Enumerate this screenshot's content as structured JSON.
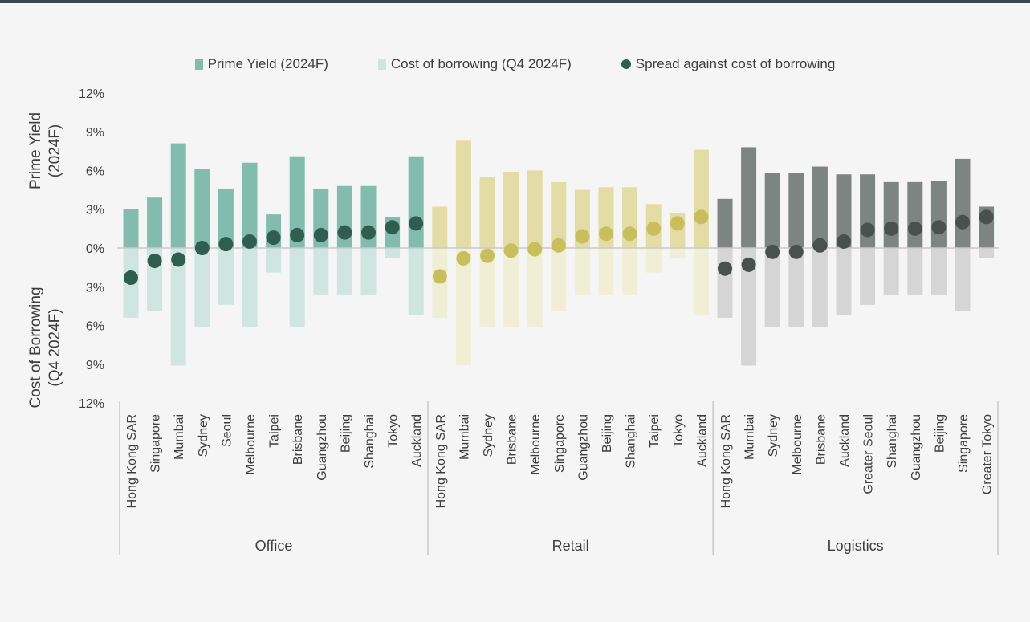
{
  "colors": {
    "office_yield": "#82bcad",
    "office_borrow": "#cfe5df",
    "office_dot": "#2f5e4f",
    "retail_yield": "#e3dca4",
    "retail_borrow": "#f1eed6",
    "retail_dot": "#c8bf5c",
    "logistics_yield": "#7e8482",
    "logistics_borrow": "#d5d5d5",
    "logistics_dot": "#4a504e"
  },
  "legend": {
    "yield_label": "Prime Yield (2024F)",
    "borrow_label": "Cost of borrowing (Q4 2024F)",
    "spread_label": "Spread against cost of borrowing"
  },
  "chart_data": {
    "type": "bar",
    "ylabel_top": [
      "Prime Yield",
      "(2024F)"
    ],
    "ylabel_bottom": [
      "Cost of Borrowing",
      "(Q4 2024F)"
    ],
    "y_ticks": [
      {
        "value": 12,
        "label": "12%"
      },
      {
        "value": 9,
        "label": "9%"
      },
      {
        "value": 6,
        "label": "6%"
      },
      {
        "value": 3,
        "label": "3%"
      },
      {
        "value": 0,
        "label": "0%"
      },
      {
        "value": -3,
        "label": "3%"
      },
      {
        "value": -6,
        "label": "6%"
      },
      {
        "value": -9,
        "label": "9%"
      },
      {
        "value": -12,
        "label": "12%"
      }
    ],
    "ylim": [
      -12,
      12
    ],
    "groups": [
      {
        "name": "Office",
        "cities": [
          "Hong Kong SAR",
          "Singapore",
          "Mumbai",
          "Sydney",
          "Seoul",
          "Melbourne",
          "Taipei",
          "Brisbane",
          "Guangzhou",
          "Beijing",
          "Shanghai",
          "Tokyo",
          "Auckland"
        ],
        "prime_yield": [
          3.0,
          3.9,
          8.1,
          6.1,
          4.6,
          6.6,
          2.6,
          7.1,
          4.6,
          4.8,
          4.8,
          2.4,
          7.1
        ],
        "cost_of_borrowing": [
          5.4,
          4.9,
          9.1,
          6.1,
          4.4,
          6.1,
          1.9,
          6.1,
          3.6,
          3.6,
          3.6,
          0.8,
          5.2
        ],
        "spread": [
          -2.3,
          -1.0,
          -0.9,
          0.0,
          0.3,
          0.5,
          0.8,
          1.0,
          1.0,
          1.2,
          1.2,
          1.6,
          1.9
        ]
      },
      {
        "name": "Retail",
        "cities": [
          "Hong Kong SAR",
          "Mumbai",
          "Sydney",
          "Brisbane",
          "Melbourne",
          "Singapore",
          "Guangzhou",
          "Beijing",
          "Shanghai",
          "Taipei",
          "Tokyo",
          "Auckland"
        ],
        "prime_yield": [
          3.2,
          8.3,
          5.5,
          5.9,
          6.0,
          5.1,
          4.5,
          4.7,
          4.7,
          3.4,
          2.7,
          7.6
        ],
        "cost_of_borrowing": [
          5.4,
          9.1,
          6.1,
          6.1,
          6.1,
          4.9,
          3.6,
          3.6,
          3.6,
          1.9,
          0.8,
          5.2
        ],
        "spread": [
          -2.2,
          -0.8,
          -0.6,
          -0.2,
          -0.1,
          0.2,
          0.9,
          1.1,
          1.1,
          1.5,
          1.9,
          2.4
        ]
      },
      {
        "name": "Logistics",
        "cities": [
          "Hong Kong SAR",
          "Mumbai",
          "Sydney",
          "Melbourne",
          "Brisbane",
          "Auckland",
          "Greater Seoul",
          "Shanghai",
          "Guangzhou",
          "Beijing",
          "Singapore",
          "Greater Tokyo"
        ],
        "prime_yield": [
          3.8,
          7.8,
          5.8,
          5.8,
          6.3,
          5.7,
          5.7,
          5.1,
          5.1,
          5.2,
          6.9,
          3.2
        ],
        "cost_of_borrowing": [
          5.4,
          9.1,
          6.1,
          6.1,
          6.1,
          5.2,
          4.4,
          3.6,
          3.6,
          3.6,
          4.9,
          0.8
        ],
        "spread": [
          -1.6,
          -1.3,
          -0.3,
          -0.3,
          0.2,
          0.5,
          1.4,
          1.5,
          1.5,
          1.6,
          2.0,
          2.4
        ]
      }
    ]
  }
}
